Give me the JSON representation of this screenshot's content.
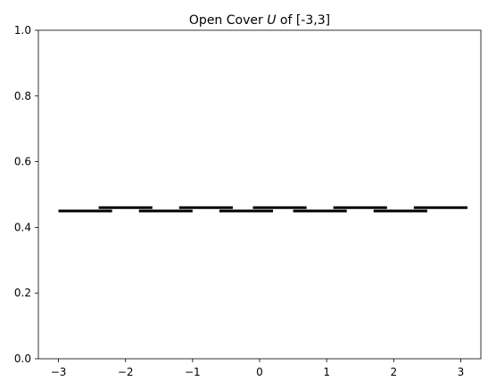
{
  "chart_data": {
    "type": "line",
    "title": {
      "prefix": "Open Cover ",
      "symbol": "U",
      "suffix": " of [-3,3]"
    },
    "xlabel": "",
    "ylabel": "",
    "xlim": [
      -3.3,
      3.3
    ],
    "ylim": [
      0.0,
      1.0
    ],
    "grid": false,
    "x_ticks": [
      -3,
      -2,
      -1,
      0,
      1,
      2,
      3
    ],
    "x_tick_labels": [
      "−3",
      "−2",
      "−1",
      "0",
      "1",
      "2",
      "3"
    ],
    "y_ticks": [
      0.0,
      0.2,
      0.4,
      0.6,
      0.8,
      1.0
    ],
    "y_tick_labels": [
      "0.0",
      "0.2",
      "0.4",
      "0.6",
      "0.8",
      "1.0"
    ],
    "series_color": "#000000",
    "segments": [
      {
        "x": [
          -3.0,
          -2.2
        ],
        "y": 0.45
      },
      {
        "x": [
          -2.4,
          -1.6
        ],
        "y": 0.46
      },
      {
        "x": [
          -1.8,
          -1.0
        ],
        "y": 0.45
      },
      {
        "x": [
          -1.2,
          -0.4
        ],
        "y": 0.46
      },
      {
        "x": [
          -0.6,
          0.2
        ],
        "y": 0.45
      },
      {
        "x": [
          -0.1,
          0.7
        ],
        "y": 0.46
      },
      {
        "x": [
          0.5,
          1.3
        ],
        "y": 0.45
      },
      {
        "x": [
          1.1,
          1.9
        ],
        "y": 0.46
      },
      {
        "x": [
          1.7,
          2.5
        ],
        "y": 0.45
      },
      {
        "x": [
          2.3,
          3.1
        ],
        "y": 0.46
      }
    ]
  }
}
